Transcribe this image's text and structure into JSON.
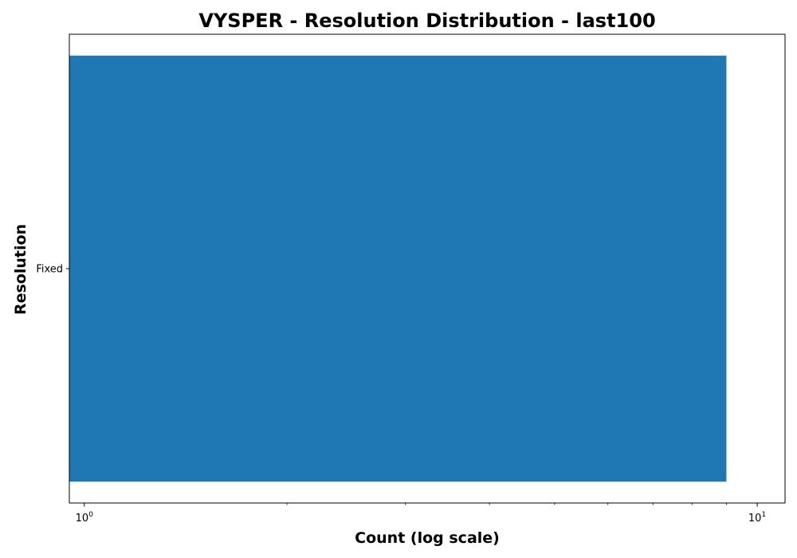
{
  "chart_data": {
    "type": "bar",
    "orientation": "horizontal",
    "title": "VYSPER - Resolution Distribution - last100",
    "xlabel": "Count (log scale)",
    "ylabel": "Resolution",
    "x_scale": "log",
    "xlim": [
      0.95,
      11
    ],
    "categories": [
      "Fixed"
    ],
    "values": [
      9
    ],
    "x_major_ticks": [
      {
        "value": 1,
        "base": "10",
        "exp": "0"
      },
      {
        "value": 10,
        "base": "10",
        "exp": "1"
      }
    ],
    "x_minor_ticks": [
      2,
      3,
      4,
      5,
      6,
      7,
      8,
      9
    ],
    "bar_color": "#1f77b4",
    "grid": false,
    "legend": "none"
  }
}
